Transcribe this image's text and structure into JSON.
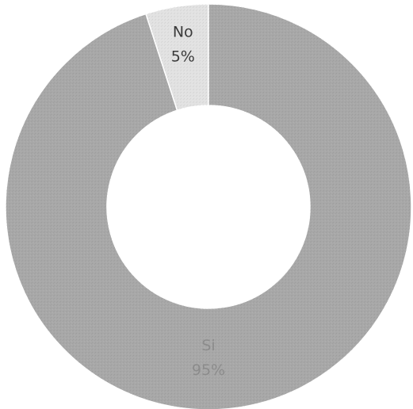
{
  "chart_data": {
    "type": "pie",
    "variant": "donut",
    "title": "",
    "slices": [
      {
        "label": "No",
        "value": 5,
        "value_label": "5%",
        "color": "#e2e2e2",
        "text_color": "#3a3a3a"
      },
      {
        "label": "Si",
        "value": 95,
        "value_label": "95%",
        "color": "#a8a8a8",
        "text_color": "#8c8c8c"
      }
    ],
    "legend": "none"
  }
}
